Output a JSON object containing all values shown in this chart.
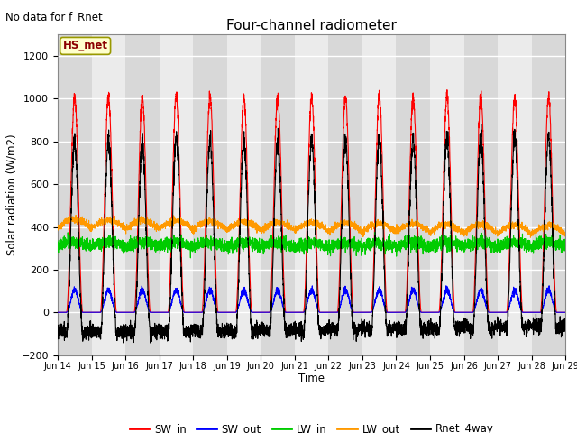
{
  "title": "Four-channel radiometer",
  "annotation": "No data for f_Rnet",
  "ylabel": "Solar radiation (W/m2)",
  "xlabel": "Time",
  "ylim": [
    -200,
    1300
  ],
  "yticks": [
    -200,
    0,
    200,
    400,
    600,
    800,
    1000,
    1200
  ],
  "xtick_labels": [
    "Jun 14",
    "Jun 15",
    "Jun 16",
    "Jun 17",
    "Jun 18",
    "Jun 19",
    "Jun 20",
    "Jun 21",
    "Jun 22",
    "Jun 23",
    "Jun 24",
    "Jun 25",
    "Jun 26",
    "Jun 27",
    "Jun 28",
    "Jun 29"
  ],
  "legend_labels": [
    "SW_in",
    "SW_out",
    "LW_in",
    "LW_out",
    "Rnet_4way"
  ],
  "legend_colors": [
    "#ff0000",
    "#0000ff",
    "#00cc00",
    "#ff9900",
    "#000000"
  ],
  "station_label": "HS_met",
  "bg_dark": "#d8d8d8",
  "bg_light": "#ebebeb",
  "n_days": 15,
  "SW_in_peak": 1010,
  "SW_out_peak": 100,
  "LW_in_base": 310,
  "LW_out_base": 395,
  "Rnet_peak": 820
}
